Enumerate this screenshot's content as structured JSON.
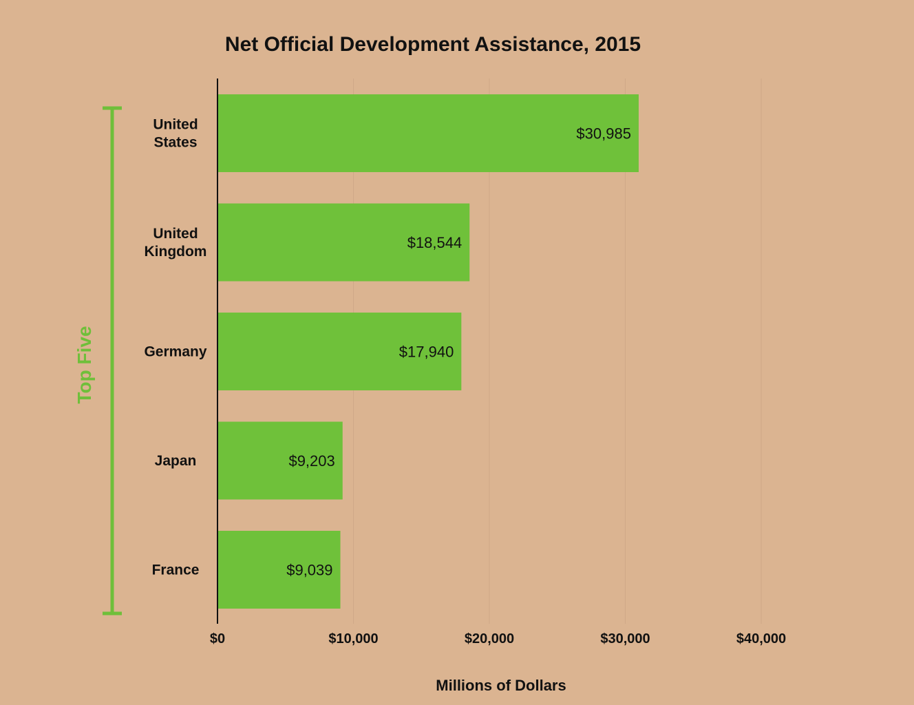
{
  "chart_data": {
    "type": "bar",
    "orientation": "horizontal",
    "title": "Net Official Development Assistance, 2015",
    "xlabel": "Millions of Dollars",
    "ylabel": "",
    "categories": [
      [
        "United",
        "States"
      ],
      [
        "United",
        "Kingdom"
      ],
      [
        "Germany"
      ],
      [
        "Japan"
      ],
      [
        "France"
      ]
    ],
    "values": [
      30985,
      18544,
      17940,
      9203,
      9039
    ],
    "value_labels": [
      "$30,985",
      "$18,544",
      "$17,940",
      "$9,203",
      "$9,039"
    ],
    "xlim": [
      0,
      40000
    ],
    "ticks": [
      0,
      10000,
      20000,
      30000,
      40000
    ],
    "tick_labels": [
      "$0",
      "$10,000",
      "$20,000",
      "$30,000",
      "$40,000"
    ],
    "grid": "vertical",
    "legend": "none",
    "group_bracket": {
      "label": "Top Five",
      "color": "#6fbf3a"
    },
    "colors": {
      "background": "#dbb491",
      "bar": "#6fc13a",
      "bracket": "#6fbf3a",
      "text": "#111111",
      "grid": "#cfa888"
    }
  }
}
